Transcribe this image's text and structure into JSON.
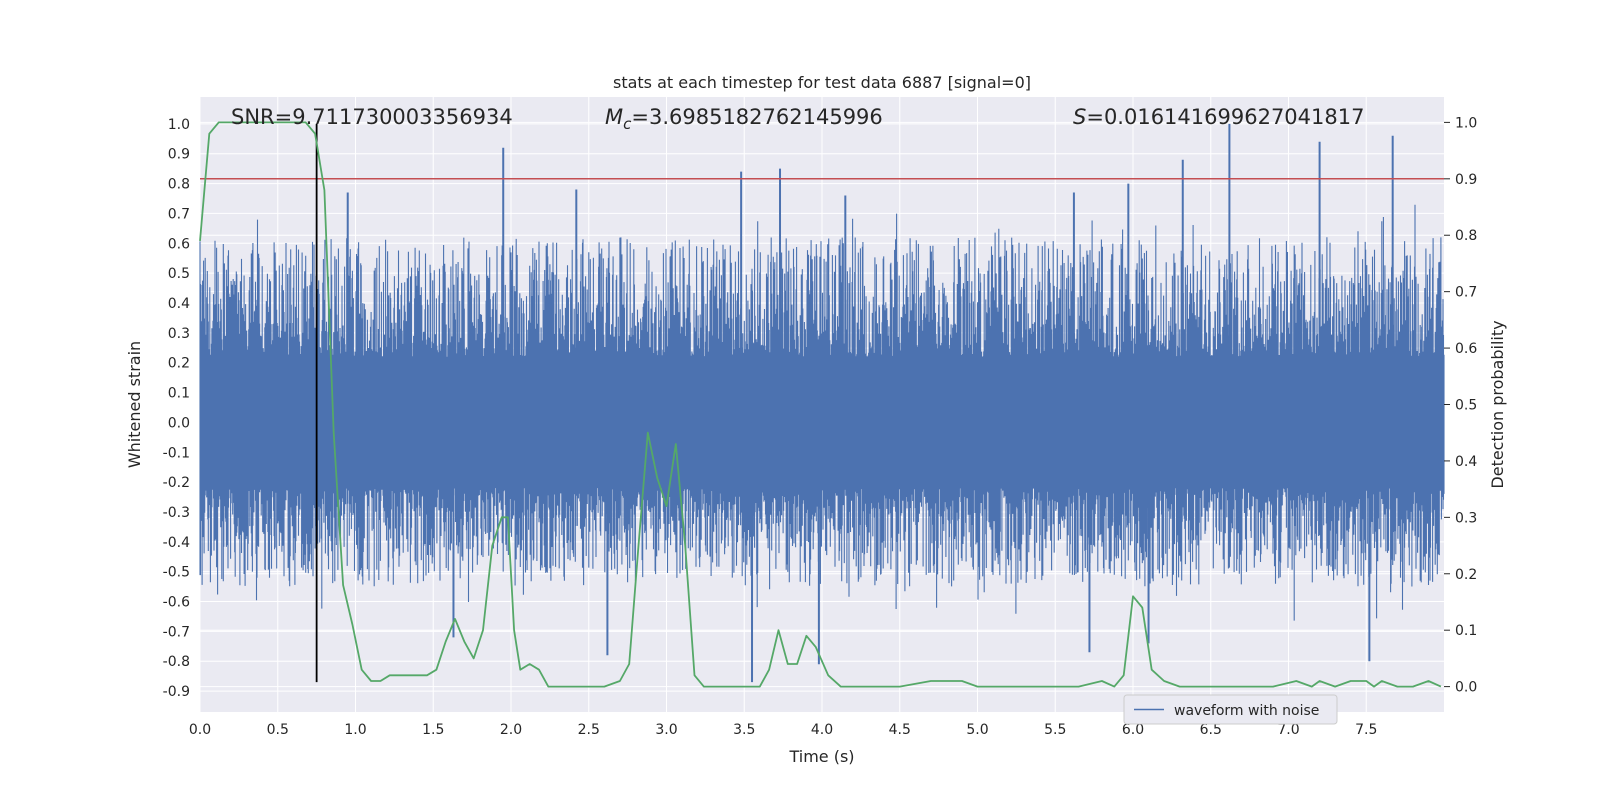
{
  "chart_data": {
    "type": "line",
    "title": "stats at each timestep for test data 6887 [signal=0]",
    "xlabel": "Time (s)",
    "ylabel_left": "Whitened strain",
    "ylabel_right": "Detection probability",
    "xlim": [
      0,
      8
    ],
    "ylim_left": [
      -0.97,
      1.09
    ],
    "ylim_right": [
      -0.045,
      1.045
    ],
    "x_ticks": [
      "0.0",
      "0.5",
      "1.0",
      "1.5",
      "2.0",
      "2.5",
      "3.0",
      "3.5",
      "4.0",
      "4.5",
      "5.0",
      "5.5",
      "6.0",
      "6.5",
      "7.0",
      "7.5"
    ],
    "y_ticks_left": [
      "1.0",
      "0.9",
      "0.8",
      "0.7",
      "0.6",
      "0.5",
      "0.4",
      "0.3",
      "0.2",
      "0.1",
      "0.0",
      "-0.1",
      "-0.2",
      "-0.3",
      "-0.4",
      "-0.5",
      "-0.6",
      "-0.7",
      "-0.8",
      "-0.9"
    ],
    "y_ticks_right": [
      "1.0",
      "0.9",
      "0.8",
      "0.7",
      "0.6",
      "0.5",
      "0.4",
      "0.3",
      "0.2",
      "0.1",
      "0.0"
    ],
    "grid": true,
    "legend_position": "bottom-right",
    "annotations": {
      "snr": "SNR=9.711730003356934",
      "mc_symbol": "M",
      "mc_sub": "c",
      "mc_value": "=3.6985182762145996",
      "s_symbol": "S",
      "s_value": "=0.016141699627041817"
    },
    "series": [
      {
        "name": "waveform with noise",
        "axis": "left",
        "color": "#4c72b0",
        "kind": "noise",
        "envelope_typical": [
          -0.55,
          0.62
        ],
        "peak_points": [
          [
            1.95,
            0.92
          ],
          [
            3.48,
            0.84
          ],
          [
            3.73,
            0.85
          ],
          [
            6.32,
            0.88
          ],
          [
            6.62,
            1.0
          ],
          [
            7.2,
            0.94
          ],
          [
            7.67,
            0.96
          ],
          [
            0.95,
            0.77
          ],
          [
            2.42,
            0.78
          ],
          [
            4.15,
            0.76
          ],
          [
            5.62,
            0.77
          ],
          [
            5.97,
            0.8
          ],
          [
            1.63,
            -0.72
          ],
          [
            2.62,
            -0.78
          ],
          [
            3.55,
            -0.87
          ],
          [
            3.98,
            -0.81
          ],
          [
            5.72,
            -0.77
          ],
          [
            6.1,
            -0.74
          ],
          [
            7.52,
            -0.8
          ]
        ]
      },
      {
        "axis": "right",
        "color": "#55a868",
        "kind": "detection_probability",
        "x": [
          0.0,
          0.06,
          0.12,
          0.2,
          0.3,
          0.4,
          0.5,
          0.6,
          0.68,
          0.74,
          0.8,
          0.86,
          0.92,
          0.98,
          1.04,
          1.1,
          1.16,
          1.22,
          1.28,
          1.34,
          1.4,
          1.46,
          1.52,
          1.58,
          1.64,
          1.7,
          1.76,
          1.82,
          1.88,
          1.94,
          1.98,
          2.02,
          2.06,
          2.12,
          2.18,
          2.24,
          2.3,
          2.36,
          2.42,
          2.5,
          2.6,
          2.7,
          2.76,
          2.82,
          2.88,
          2.94,
          3.0,
          3.06,
          3.12,
          3.18,
          3.24,
          3.3,
          3.4,
          3.5,
          3.6,
          3.66,
          3.72,
          3.78,
          3.84,
          3.9,
          3.96,
          4.04,
          4.12,
          4.2,
          4.35,
          4.5,
          4.7,
          4.8,
          4.9,
          5.0,
          5.1,
          5.2,
          5.35,
          5.5,
          5.65,
          5.8,
          5.88,
          5.94,
          6.0,
          6.06,
          6.12,
          6.2,
          6.3,
          6.45,
          6.6,
          6.75,
          6.9,
          7.05,
          7.15,
          7.2,
          7.3,
          7.4,
          7.5,
          7.55,
          7.6,
          7.7,
          7.8,
          7.9,
          7.98
        ],
        "values": [
          0.79,
          0.98,
          1.0,
          1.0,
          1.0,
          1.0,
          1.0,
          1.0,
          1.0,
          0.98,
          0.88,
          0.45,
          0.18,
          0.11,
          0.03,
          0.01,
          0.01,
          0.02,
          0.02,
          0.02,
          0.02,
          0.02,
          0.03,
          0.08,
          0.12,
          0.08,
          0.05,
          0.1,
          0.25,
          0.3,
          0.3,
          0.1,
          0.03,
          0.04,
          0.03,
          0.0,
          0.0,
          0.0,
          0.0,
          0.0,
          0.0,
          0.01,
          0.04,
          0.25,
          0.45,
          0.37,
          0.32,
          0.43,
          0.25,
          0.02,
          0.0,
          0.0,
          0.0,
          0.0,
          0.0,
          0.03,
          0.1,
          0.04,
          0.04,
          0.09,
          0.07,
          0.02,
          0.0,
          0.0,
          0.0,
          0.0,
          0.01,
          0.01,
          0.01,
          0.0,
          0.0,
          0.0,
          0.0,
          0.0,
          0.0,
          0.01,
          0.0,
          0.02,
          0.16,
          0.14,
          0.03,
          0.01,
          0.0,
          0.0,
          0.0,
          0.0,
          0.0,
          0.01,
          0.0,
          0.01,
          0.0,
          0.01,
          0.01,
          0.0,
          0.01,
          0.0,
          0.0,
          0.01,
          0.0
        ]
      }
    ],
    "threshold_line": {
      "axis": "right",
      "value": 0.9,
      "color": "#c44e52"
    },
    "marker_line": {
      "x": 0.75,
      "y_from": -0.87,
      "y_to": 1.0,
      "color": "#000000"
    }
  }
}
